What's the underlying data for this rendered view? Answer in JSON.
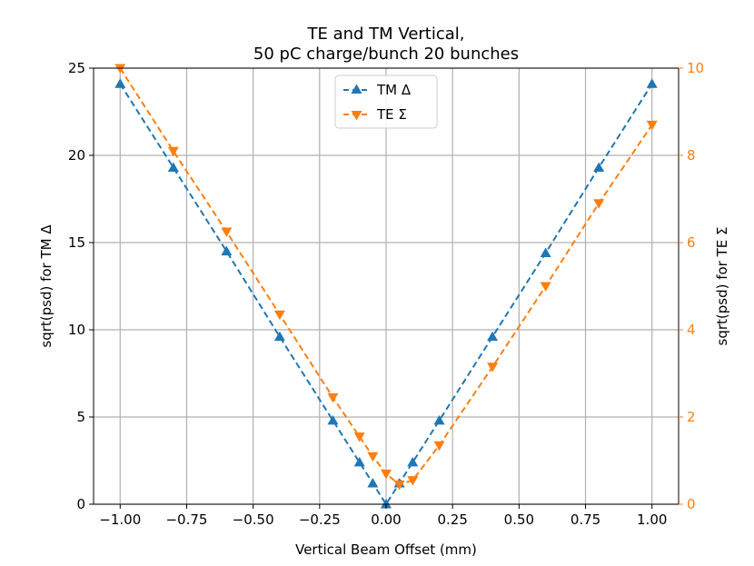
{
  "chart_data": {
    "type": "line",
    "title_line1": "TE and TM Vertical,",
    "title_line2": "50 pC charge/bunch 20 bunches",
    "xlabel": "Vertical Beam Offset (mm)",
    "ylabel_left": "sqrt(psd) for TM Δ",
    "ylabel_right": "sqrt(psd) for TE Σ",
    "xlim": [
      -1.1,
      1.1
    ],
    "ylim_left": [
      0,
      25
    ],
    "ylim_right": [
      0,
      10
    ],
    "xticks": [
      -1.0,
      -0.75,
      -0.5,
      -0.25,
      0.0,
      0.25,
      0.5,
      0.75,
      1.0
    ],
    "xtick_labels": [
      "−1.00",
      "−0.75",
      "−0.50",
      "−0.25",
      "0.00",
      "0.25",
      "0.50",
      "0.75",
      "1.00"
    ],
    "yticks_left": [
      0,
      5,
      10,
      15,
      20,
      25
    ],
    "yticks_right": [
      0,
      2,
      4,
      6,
      8,
      10
    ],
    "grid": true,
    "legend_position": "top-center",
    "series": [
      {
        "name": "TM Δ",
        "axis": "left",
        "color": "#1f77b4",
        "marker": "triangle-up",
        "linestyle": "dashed",
        "x": [
          -1.0,
          -0.8,
          -0.6,
          -0.4,
          -0.2,
          -0.1,
          -0.05,
          0.0,
          0.05,
          0.1,
          0.2,
          0.4,
          0.6,
          0.8,
          1.0
        ],
        "y": [
          24.1,
          19.3,
          14.5,
          9.6,
          4.8,
          2.4,
          1.2,
          0.0,
          1.2,
          2.4,
          4.8,
          9.6,
          14.4,
          19.3,
          24.1
        ]
      },
      {
        "name": "TE Σ",
        "axis": "right",
        "color": "#ff7f0e",
        "marker": "triangle-down",
        "linestyle": "dashed",
        "x": [
          -1.0,
          -0.8,
          -0.6,
          -0.4,
          -0.2,
          -0.1,
          -0.05,
          0.0,
          0.05,
          0.1,
          0.2,
          0.4,
          0.6,
          0.8,
          1.0
        ],
        "y": [
          10.0,
          8.1,
          6.25,
          4.35,
          2.45,
          1.55,
          1.1,
          0.7,
          0.45,
          0.55,
          1.35,
          3.15,
          5.0,
          6.9,
          8.7
        ]
      }
    ]
  }
}
